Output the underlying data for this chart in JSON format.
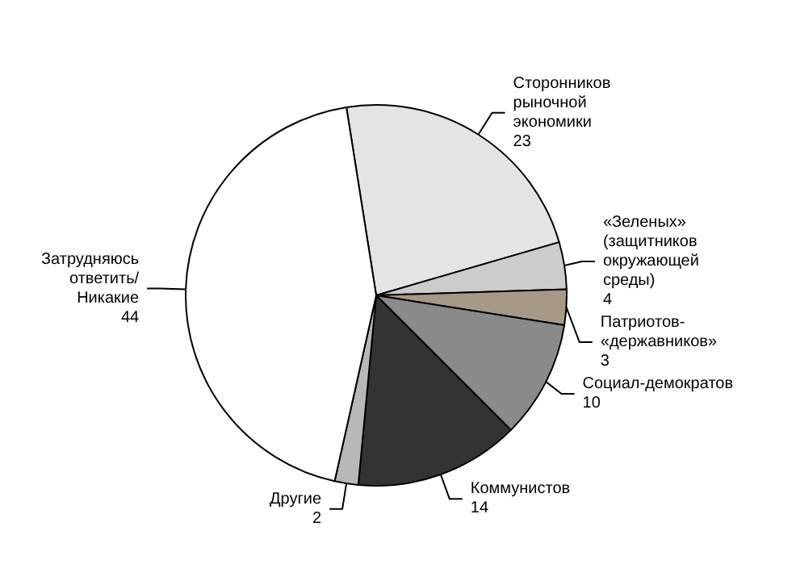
{
  "chart_data": {
    "type": "pie",
    "categories": [
      "Сторонников рыночной экономики",
      "«Зеленых» (защитников окружающей среды)",
      "Патриотов-«державников»",
      "Социал-демократов",
      "Коммунистов",
      "Другие",
      "Затрудняюсь ответить/ Никакие"
    ],
    "values": [
      23,
      4,
      3,
      10,
      14,
      2,
      44
    ],
    "colors": [
      "#e4e4e4",
      "#cccccc",
      "#a89888",
      "#8a8a8a",
      "#333333",
      "#b8b8b8",
      "#ffffff"
    ],
    "data_labels": true,
    "legend": false
  }
}
